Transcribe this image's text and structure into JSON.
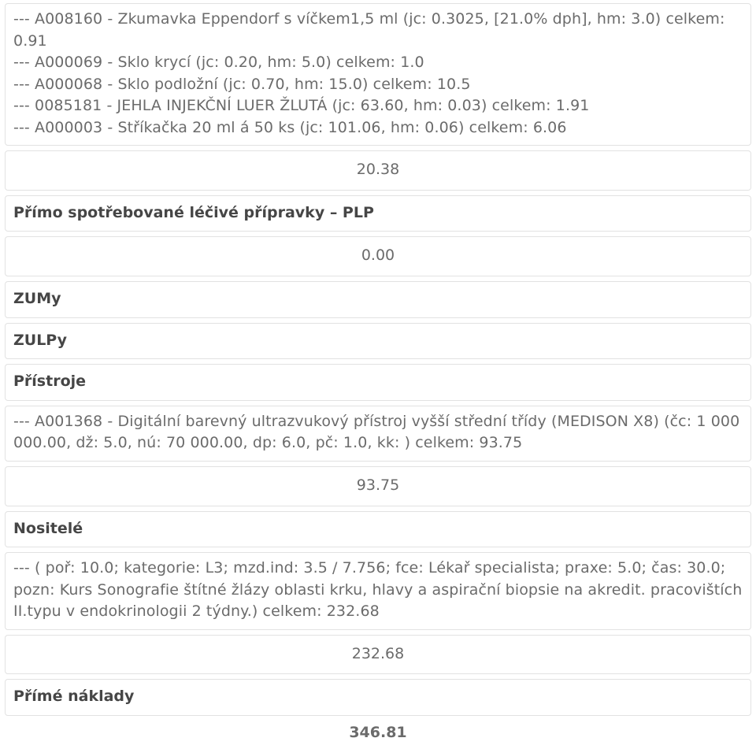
{
  "colors": {
    "border": "#e2e2e2",
    "body_text": "#6b6b6b",
    "heading_text": "#464646",
    "background": "#ffffff"
  },
  "typography": {
    "body_font_size_pt": 14,
    "heading_font_weight": 700,
    "line_height": 1.45
  },
  "cells": {
    "materials": "--- A008160 - Zkumavka Eppendorf s víčkem1,5 ml (jc: 0.3025, [21.0% dph], hm: 3.0) celkem: 0.91\n--- A000069 - Sklo krycí (jc: 0.20, hm: 5.0) celkem: 1.0\n--- A000068 - Sklo podložní (jc: 0.70, hm: 15.0) celkem: 10.5\n--- 0085181 - JEHLA INJEKČNÍ LUER ŽLUTÁ (jc: 63.60, hm: 0.03) celkem: 1.91\n--- A000003 - Stříkačka 20 ml á 50 ks (jc: 101.06, hm: 0.06) celkem: 6.06",
    "materials_total": "20.38",
    "plp_heading": "Přímo spotřebované léčivé přípravky – PLP",
    "plp_total": "0.00",
    "zumy_heading": "ZUMy",
    "zulpy_heading": "ZULPy",
    "pristroje_heading": "Přístroje",
    "pristroje_text": "--- A001368 - Digitální barevný ultrazvukový přístroj vyšší střední třídy (MEDISON X8) (čc: 1 000 000.00, dž: 5.0, nú: 70 000.00, dp: 6.0, pč: 1.0, kk: ) celkem: 93.75",
    "pristroje_total": "93.75",
    "nositele_heading": "Nositelé",
    "nositele_text": "--- ( poř: 10.0; kategorie: L3; mzd.ind: 3.5 / 7.756; fce: Lékař specialista; praxe: 5.0; čas: 30.0; pozn: Kurs Sonografie štítné žlázy oblasti krku, hlavy a aspirační biopsie na akredit. pracovištích II.typu v endokrinologii 2 týdny.) celkem: 232.68",
    "nositele_total": "232.68",
    "prime_naklady_heading": "Přímé náklady",
    "prime_naklady_total": "346.81"
  }
}
